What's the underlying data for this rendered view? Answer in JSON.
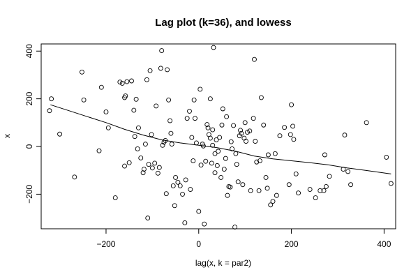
{
  "chart_data": {
    "type": "scatter",
    "title": "Lag plot (k=36), and lowess",
    "xlabel": "lag(x, k = par2)",
    "ylabel": "x",
    "xlim": [
      -340,
      425
    ],
    "ylim": [
      -345,
      430
    ],
    "xticks": [
      -200,
      0,
      200,
      400
    ],
    "yticks": [
      -200,
      0,
      200,
      400
    ],
    "xtick_labels": [
      "−200",
      "0",
      "200",
      "400"
    ],
    "ytick_labels": [
      "−200",
      "0",
      "200",
      "400"
    ],
    "grid": false,
    "points": [
      [
        -322,
        150
      ],
      [
        -318,
        200
      ],
      [
        -300,
        52
      ],
      [
        -268,
        -128
      ],
      [
        -252,
        312
      ],
      [
        -248,
        195
      ],
      [
        -215,
        -18
      ],
      [
        -210,
        248
      ],
      [
        -200,
        145
      ],
      [
        -195,
        78
      ],
      [
        -180,
        -215
      ],
      [
        -170,
        270
      ],
      [
        -165,
        265
      ],
      [
        -160,
        205
      ],
      [
        -158,
        212
      ],
      [
        -155,
        272
      ],
      [
        -160,
        -82
      ],
      [
        -150,
        -68
      ],
      [
        -145,
        275
      ],
      [
        -140,
        152
      ],
      [
        -138,
        42
      ],
      [
        -135,
        198
      ],
      [
        -132,
        -10
      ],
      [
        -130,
        78
      ],
      [
        -125,
        -48
      ],
      [
        -120,
        -110
      ],
      [
        -118,
        -95
      ],
      [
        -115,
        10
      ],
      [
        -112,
        280
      ],
      [
        -110,
        -300
      ],
      [
        -108,
        -75
      ],
      [
        -105,
        318
      ],
      [
        -102,
        50
      ],
      [
        -100,
        -90
      ],
      [
        -95,
        -70
      ],
      [
        -92,
        170
      ],
      [
        -88,
        -112
      ],
      [
        -85,
        -88
      ],
      [
        -82,
        328
      ],
      [
        -80,
        402
      ],
      [
        -78,
        5
      ],
      [
        -75,
        18
      ],
      [
        -72,
        25
      ],
      [
        -70,
        -198
      ],
      [
        -68,
        322
      ],
      [
        -65,
        195
      ],
      [
        -62,
        108
      ],
      [
        -60,
        55
      ],
      [
        -58,
        10
      ],
      [
        -55,
        -165
      ],
      [
        -52,
        -248
      ],
      [
        -50,
        -130
      ],
      [
        -45,
        -150
      ],
      [
        -40,
        -165
      ],
      [
        -35,
        -200
      ],
      [
        -30,
        -320
      ],
      [
        -28,
        -140
      ],
      [
        -25,
        118
      ],
      [
        -20,
        148
      ],
      [
        -18,
        -180
      ],
      [
        -15,
        38
      ],
      [
        -12,
        -60
      ],
      [
        -10,
        195
      ],
      [
        -8,
        118
      ],
      [
        -5,
        15
      ],
      [
        0,
        -272
      ],
      [
        3,
        240
      ],
      [
        5,
        -78
      ],
      [
        8,
        10
      ],
      [
        10,
        2
      ],
      [
        12,
        -325
      ],
      [
        15,
        -62
      ],
      [
        18,
        92
      ],
      [
        20,
        78
      ],
      [
        22,
        50
      ],
      [
        25,
        200
      ],
      [
        25,
        35
      ],
      [
        28,
        -70
      ],
      [
        30,
        70
      ],
      [
        30,
        5
      ],
      [
        32,
        415
      ],
      [
        35,
        -30
      ],
      [
        35,
        -110
      ],
      [
        38,
        28
      ],
      [
        40,
        -80
      ],
      [
        42,
        -20
      ],
      [
        45,
        38
      ],
      [
        48,
        -130
      ],
      [
        50,
        90
      ],
      [
        52,
        158
      ],
      [
        55,
        -95
      ],
      [
        58,
        -50
      ],
      [
        60,
        125
      ],
      [
        62,
        -205
      ],
      [
        65,
        -168
      ],
      [
        68,
        -170
      ],
      [
        70,
        20
      ],
      [
        72,
        -10
      ],
      [
        75,
        88
      ],
      [
        78,
        -338
      ],
      [
        80,
        -30
      ],
      [
        82,
        -75
      ],
      [
        85,
        -148
      ],
      [
        88,
        45
      ],
      [
        90,
        68
      ],
      [
        92,
        55
      ],
      [
        95,
        -160
      ],
      [
        98,
        35
      ],
      [
        100,
        100
      ],
      [
        102,
        22
      ],
      [
        105,
        60
      ],
      [
        110,
        65
      ],
      [
        112,
        -185
      ],
      [
        118,
        118
      ],
      [
        120,
        365
      ],
      [
        122,
        22
      ],
      [
        125,
        -65
      ],
      [
        130,
        -185
      ],
      [
        132,
        -60
      ],
      [
        135,
        205
      ],
      [
        140,
        90
      ],
      [
        145,
        -130
      ],
      [
        148,
        -175
      ],
      [
        150,
        -35
      ],
      [
        155,
        -245
      ],
      [
        160,
        -230
      ],
      [
        165,
        -30
      ],
      [
        168,
        -205
      ],
      [
        175,
        45
      ],
      [
        185,
        80
      ],
      [
        195,
        -160
      ],
      [
        198,
        50
      ],
      [
        200,
        175
      ],
      [
        203,
        85
      ],
      [
        205,
        30
      ],
      [
        210,
        -115
      ],
      [
        215,
        -195
      ],
      [
        240,
        -180
      ],
      [
        252,
        -215
      ],
      [
        262,
        -185
      ],
      [
        270,
        -185
      ],
      [
        272,
        -35
      ],
      [
        275,
        -168
      ],
      [
        282,
        -125
      ],
      [
        312,
        -95
      ],
      [
        315,
        48
      ],
      [
        322,
        -105
      ],
      [
        328,
        -160
      ],
      [
        362,
        100
      ],
      [
        405,
        -45
      ],
      [
        415,
        -155
      ]
    ],
    "lowess": [
      [
        -320,
        175
      ],
      [
        -280,
        150
      ],
      [
        -240,
        125
      ],
      [
        -200,
        100
      ],
      [
        -160,
        72
      ],
      [
        -120,
        48
      ],
      [
        -80,
        28
      ],
      [
        -40,
        15
      ],
      [
        0,
        5
      ],
      [
        40,
        -5
      ],
      [
        80,
        -20
      ],
      [
        120,
        -40
      ],
      [
        160,
        -52
      ],
      [
        200,
        -60
      ],
      [
        240,
        -68
      ],
      [
        280,
        -77
      ],
      [
        320,
        -90
      ],
      [
        360,
        -100
      ],
      [
        415,
        -115
      ]
    ]
  }
}
